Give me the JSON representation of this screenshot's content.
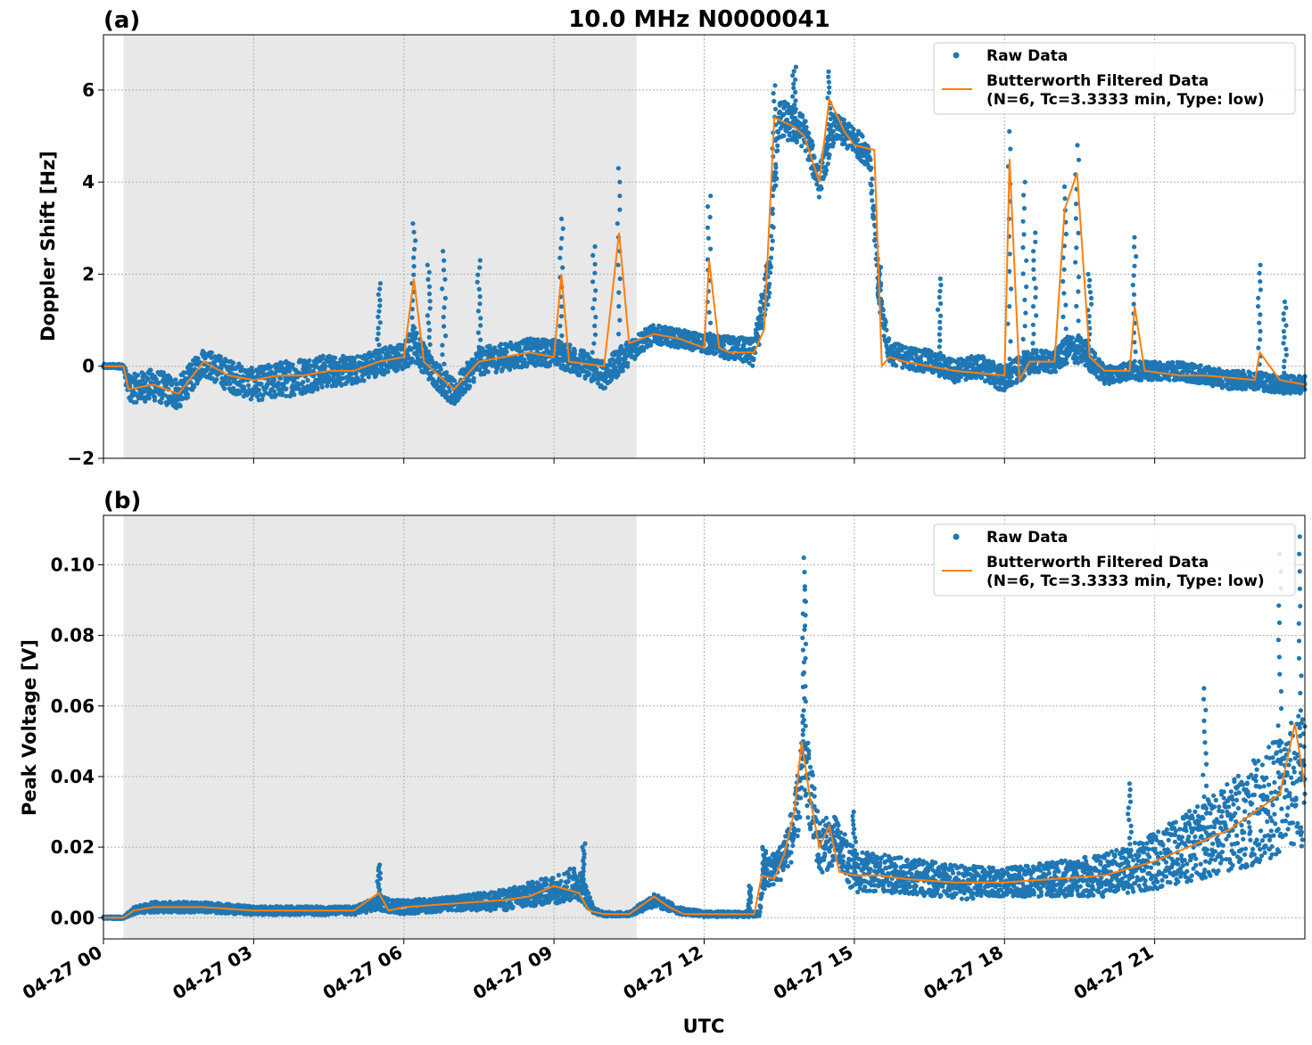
{
  "figure": {
    "title": "10.0 MHz N0000041",
    "xlabel": "UTC",
    "x_tick_labels": [
      "04-27 00",
      "04-27 03",
      "04-27 06",
      "04-27 09",
      "04-27 12",
      "04-27 15",
      "04-27 18",
      "04-27 21"
    ],
    "legend": {
      "raw_label": "Raw Data",
      "filtered_label_line1": "Butterworth Filtered Data",
      "filtered_label_line2": "(N=6, Tc=3.3333 min, Type: low)"
    }
  },
  "colors": {
    "raw": "#1f77b4",
    "filtered": "#ff7f0e",
    "night_shade": "#e8e8e8",
    "grid": "#b0b0b0"
  },
  "chart_data": [
    {
      "type": "scatter",
      "panel_label": "(a)",
      "ylabel": "Doppler Shift [Hz]",
      "xlim": [
        "2024-04-27 00:00",
        "2024-04-28 00:00"
      ],
      "ylim": [
        -2,
        7.2
      ],
      "y_ticks": [
        -2,
        0,
        2,
        4,
        6
      ],
      "y_tick_labels": [
        "−2",
        "0",
        "2",
        "4",
        "6"
      ],
      "grid": true,
      "legend_position": "top-right",
      "shaded_span_hours": [
        0.4,
        10.65
      ],
      "series": [
        {
          "name": "Raw Data",
          "x_hours": [
            0.0,
            0.4,
            0.5,
            1.0,
            1.5,
            2.0,
            2.5,
            3.0,
            3.5,
            4.0,
            4.5,
            5.0,
            5.5,
            6.0,
            6.2,
            6.5,
            7.0,
            7.5,
            8.0,
            8.5,
            9.0,
            9.5,
            10.0,
            10.3,
            10.7,
            11.0,
            11.5,
            12.0,
            12.5,
            13.0,
            13.3,
            13.5,
            14.0,
            14.3,
            14.6,
            15.0,
            15.3,
            15.5,
            15.7,
            16.0,
            16.5,
            17.0,
            17.5,
            18.0,
            18.5,
            19.0,
            19.3,
            19.6,
            20.0,
            20.5,
            21.0,
            21.5,
            22.0,
            22.5,
            23.0,
            23.5,
            24.0
          ],
          "y": [
            0.0,
            0.0,
            -0.5,
            -0.4,
            -0.6,
            0.1,
            -0.2,
            -0.4,
            -0.3,
            -0.2,
            -0.1,
            -0.1,
            0.1,
            0.2,
            0.5,
            0.0,
            -0.6,
            0.1,
            0.2,
            0.3,
            0.3,
            0.1,
            -0.2,
            0.1,
            0.5,
            0.7,
            0.6,
            0.5,
            0.4,
            0.3,
            2.0,
            5.4,
            5.1,
            4.0,
            5.2,
            4.9,
            4.6,
            1.5,
            0.3,
            0.2,
            0.1,
            -0.1,
            0.0,
            -0.3,
            0.1,
            0.1,
            0.4,
            0.3,
            -0.2,
            -0.1,
            -0.1,
            -0.1,
            -0.2,
            -0.3,
            -0.3,
            -0.4,
            -0.4
          ],
          "spread": [
            0.05,
            0.05,
            0.3,
            0.35,
            0.35,
            0.3,
            0.35,
            0.35,
            0.4,
            0.4,
            0.35,
            0.3,
            0.3,
            0.3,
            0.4,
            0.3,
            0.3,
            0.3,
            0.3,
            0.3,
            0.3,
            0.3,
            0.3,
            0.3,
            0.25,
            0.2,
            0.2,
            0.2,
            0.25,
            0.3,
            0.6,
            0.45,
            0.35,
            0.35,
            0.3,
            0.3,
            0.3,
            0.4,
            0.25,
            0.25,
            0.25,
            0.25,
            0.25,
            0.3,
            0.25,
            0.25,
            0.3,
            0.3,
            0.2,
            0.2,
            0.2,
            0.2,
            0.2,
            0.2,
            0.2,
            0.2,
            0.2
          ],
          "spikes": [
            [
              5.5,
              1.8
            ],
            [
              6.2,
              3.1
            ],
            [
              6.5,
              2.2
            ],
            [
              6.8,
              2.5
            ],
            [
              7.5,
              2.3
            ],
            [
              9.15,
              3.2
            ],
            [
              9.8,
              2.6
            ],
            [
              10.3,
              4.3
            ],
            [
              12.1,
              3.7
            ],
            [
              13.4,
              6.1
            ],
            [
              13.8,
              6.5
            ],
            [
              14.5,
              6.4
            ],
            [
              15.5,
              2.2
            ],
            [
              16.7,
              1.9
            ],
            [
              18.1,
              5.1
            ],
            [
              18.4,
              4.0
            ],
            [
              18.6,
              2.9
            ],
            [
              19.2,
              3.9
            ],
            [
              19.45,
              4.8
            ],
            [
              19.7,
              2.0
            ],
            [
              20.6,
              2.8
            ],
            [
              23.1,
              2.2
            ],
            [
              23.6,
              1.4
            ]
          ]
        },
        {
          "name": "Butterworth Filtered Data (N=6, Tc=3.3333 min, Type: low)",
          "x_hours": [
            0.0,
            0.4,
            0.5,
            1.0,
            1.5,
            2.0,
            2.5,
            3.0,
            3.5,
            4.0,
            4.5,
            5.0,
            5.5,
            6.0,
            6.2,
            6.4,
            7.0,
            7.5,
            8.0,
            8.5,
            9.0,
            9.15,
            9.3,
            10.0,
            10.3,
            10.5,
            11.0,
            11.5,
            12.0,
            12.1,
            12.3,
            12.5,
            13.0,
            13.2,
            13.4,
            13.8,
            14.0,
            14.3,
            14.5,
            14.8,
            15.0,
            15.4,
            15.55,
            15.7,
            16.0,
            17.0,
            18.0,
            18.1,
            18.3,
            18.5,
            19.0,
            19.2,
            19.45,
            19.7,
            20.0,
            20.5,
            20.6,
            20.8,
            21.5,
            22.0,
            23.0,
            23.1,
            23.5,
            24.0
          ],
          "y": [
            0.0,
            0.0,
            -0.5,
            -0.4,
            -0.6,
            0.1,
            -0.2,
            -0.3,
            -0.2,
            -0.2,
            -0.1,
            -0.1,
            0.1,
            0.2,
            1.9,
            0.1,
            -0.5,
            0.1,
            0.2,
            0.3,
            0.2,
            2.0,
            0.1,
            0.0,
            2.9,
            0.5,
            0.7,
            0.6,
            0.4,
            2.3,
            0.4,
            0.3,
            0.3,
            0.8,
            5.4,
            5.2,
            5.0,
            4.0,
            5.8,
            5.1,
            4.8,
            4.7,
            0.0,
            0.2,
            0.1,
            -0.1,
            -0.2,
            4.5,
            -0.3,
            0.1,
            0.1,
            3.4,
            4.2,
            0.2,
            -0.1,
            -0.1,
            1.3,
            -0.1,
            -0.2,
            -0.2,
            -0.3,
            0.3,
            -0.3,
            -0.4
          ]
        }
      ]
    },
    {
      "type": "scatter",
      "panel_label": "(b)",
      "ylabel": "Peak Voltage [V]",
      "xlim": [
        "2024-04-27 00:00",
        "2024-04-28 00:00"
      ],
      "ylim": [
        -0.006,
        0.114
      ],
      "y_ticks": [
        0.0,
        0.02,
        0.04,
        0.06,
        0.08,
        0.1
      ],
      "y_tick_labels": [
        "0.00",
        "0.02",
        "0.04",
        "0.06",
        "0.08",
        "0.10"
      ],
      "grid": true,
      "legend_position": "top-right",
      "shaded_span_hours": [
        0.4,
        10.65
      ],
      "series": [
        {
          "name": "Raw Data",
          "x_hours": [
            0.0,
            0.4,
            0.6,
            1.0,
            2.0,
            3.0,
            4.0,
            5.0,
            5.5,
            6.0,
            7.0,
            8.0,
            9.0,
            9.5,
            9.8,
            10.0,
            10.5,
            11.0,
            11.5,
            12.0,
            13.1,
            13.2,
            13.5,
            13.8,
            14.0,
            14.3,
            14.6,
            15.0,
            16.0,
            17.0,
            18.0,
            19.0,
            20.0,
            21.0,
            22.0,
            23.0,
            23.5,
            24.0
          ],
          "y": [
            0.0,
            0.0,
            0.002,
            0.003,
            0.003,
            0.002,
            0.002,
            0.002,
            0.004,
            0.003,
            0.004,
            0.005,
            0.008,
            0.01,
            0.002,
            0.001,
            0.001,
            0.005,
            0.002,
            0.001,
            0.001,
            0.012,
            0.015,
            0.025,
            0.045,
            0.02,
            0.022,
            0.013,
            0.012,
            0.01,
            0.01,
            0.011,
            0.012,
            0.016,
            0.022,
            0.03,
            0.035,
            0.04
          ],
          "spread": [
            0.0003,
            0.0003,
            0.001,
            0.0015,
            0.0015,
            0.0012,
            0.0012,
            0.0012,
            0.002,
            0.002,
            0.002,
            0.003,
            0.004,
            0.005,
            0.0008,
            0.0006,
            0.0006,
            0.002,
            0.001,
            0.0008,
            0.0008,
            0.004,
            0.005,
            0.008,
            0.012,
            0.008,
            0.007,
            0.006,
            0.005,
            0.005,
            0.004,
            0.005,
            0.006,
            0.008,
            0.011,
            0.015,
            0.017,
            0.02
          ],
          "spikes": [
            [
              5.5,
              0.015
            ],
            [
              9.6,
              0.021
            ],
            [
              12.9,
              0.009
            ],
            [
              13.2,
              0.02
            ],
            [
              14.0,
              0.102
            ],
            [
              14.0,
              0.093
            ],
            [
              15.0,
              0.03
            ],
            [
              20.5,
              0.038
            ],
            [
              22.0,
              0.065
            ],
            [
              23.5,
              0.103
            ],
            [
              23.9,
              0.108
            ]
          ]
        },
        {
          "name": "Butterworth Filtered Data (N=6, Tc=3.3333 min, Type: low)",
          "x_hours": [
            0.0,
            0.4,
            0.6,
            1.0,
            2.0,
            3.0,
            4.0,
            5.0,
            5.5,
            5.7,
            6.0,
            7.0,
            8.0,
            8.5,
            9.0,
            9.5,
            9.7,
            10.0,
            10.5,
            11.0,
            11.3,
            11.6,
            12.0,
            13.0,
            13.15,
            13.4,
            13.6,
            13.8,
            13.95,
            14.1,
            14.3,
            14.5,
            14.7,
            15.0,
            15.5,
            16.0,
            17.0,
            18.0,
            19.0,
            20.0,
            21.0,
            22.0,
            22.5,
            23.0,
            23.5,
            23.8,
            24.0
          ],
          "y": [
            0.0,
            0.0,
            0.002,
            0.003,
            0.003,
            0.002,
            0.002,
            0.002,
            0.007,
            0.002,
            0.003,
            0.004,
            0.005,
            0.006,
            0.009,
            0.007,
            0.002,
            0.001,
            0.001,
            0.006,
            0.003,
            0.001,
            0.001,
            0.001,
            0.012,
            0.011,
            0.018,
            0.03,
            0.05,
            0.035,
            0.02,
            0.026,
            0.013,
            0.012,
            0.012,
            0.011,
            0.01,
            0.01,
            0.011,
            0.012,
            0.016,
            0.022,
            0.025,
            0.03,
            0.035,
            0.055,
            0.037
          ]
        }
      ]
    }
  ]
}
